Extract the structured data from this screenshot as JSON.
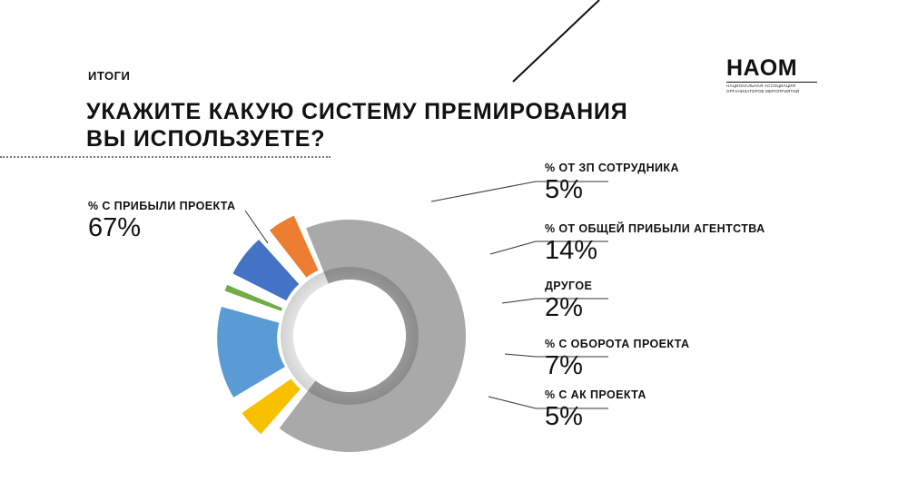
{
  "header": {
    "section": "ИТОГИ",
    "title_line1": "УКАЖИТЕ КАКУЮ СИСТЕМУ ПРЕМИРОВАНИЯ",
    "title_line2": "ВЫ ИСПОЛЬЗУЕТЕ?"
  },
  "logo": {
    "main": "НАОМ",
    "sub1": "Национальная ассоциация",
    "sub2": "организаторов мероприятий"
  },
  "chart_data": {
    "type": "pie",
    "style": "donut",
    "title": "УКАЖИТЕ КАКУЮ СИСТЕМУ ПРЕМИРОВАНИЯ ВЫ ИСПОЛЬЗУЕТЕ?",
    "slices": [
      {
        "label": "% С ПРИБЫЛИ ПРОЕКТА",
        "value": 67,
        "display": "67%",
        "color": "#a9a9a9",
        "exploded": false
      },
      {
        "label": "% ОТ ЗП СОТРУДНИКА",
        "value": 5,
        "display": "5%",
        "color": "#f7c100",
        "exploded": true
      },
      {
        "label": "% ОТ ОБЩЕЙ ПРИБЫЛИ АГЕНТСТВА",
        "value": 14,
        "display": "14%",
        "color": "#5b9bd5",
        "exploded": true
      },
      {
        "label": "ДРУГОЕ",
        "value": 2,
        "display": "2%",
        "color": "#70ad47",
        "exploded": true
      },
      {
        "label": "% С ОБОРОТА ПРОЕКТА",
        "value": 7,
        "display": "7%",
        "color": "#4472c4",
        "exploded": true
      },
      {
        "label": "% С АК ПРОЕКТА",
        "value": 5,
        "display": "5%",
        "color": "#ed7d31",
        "exploded": true
      }
    ]
  }
}
